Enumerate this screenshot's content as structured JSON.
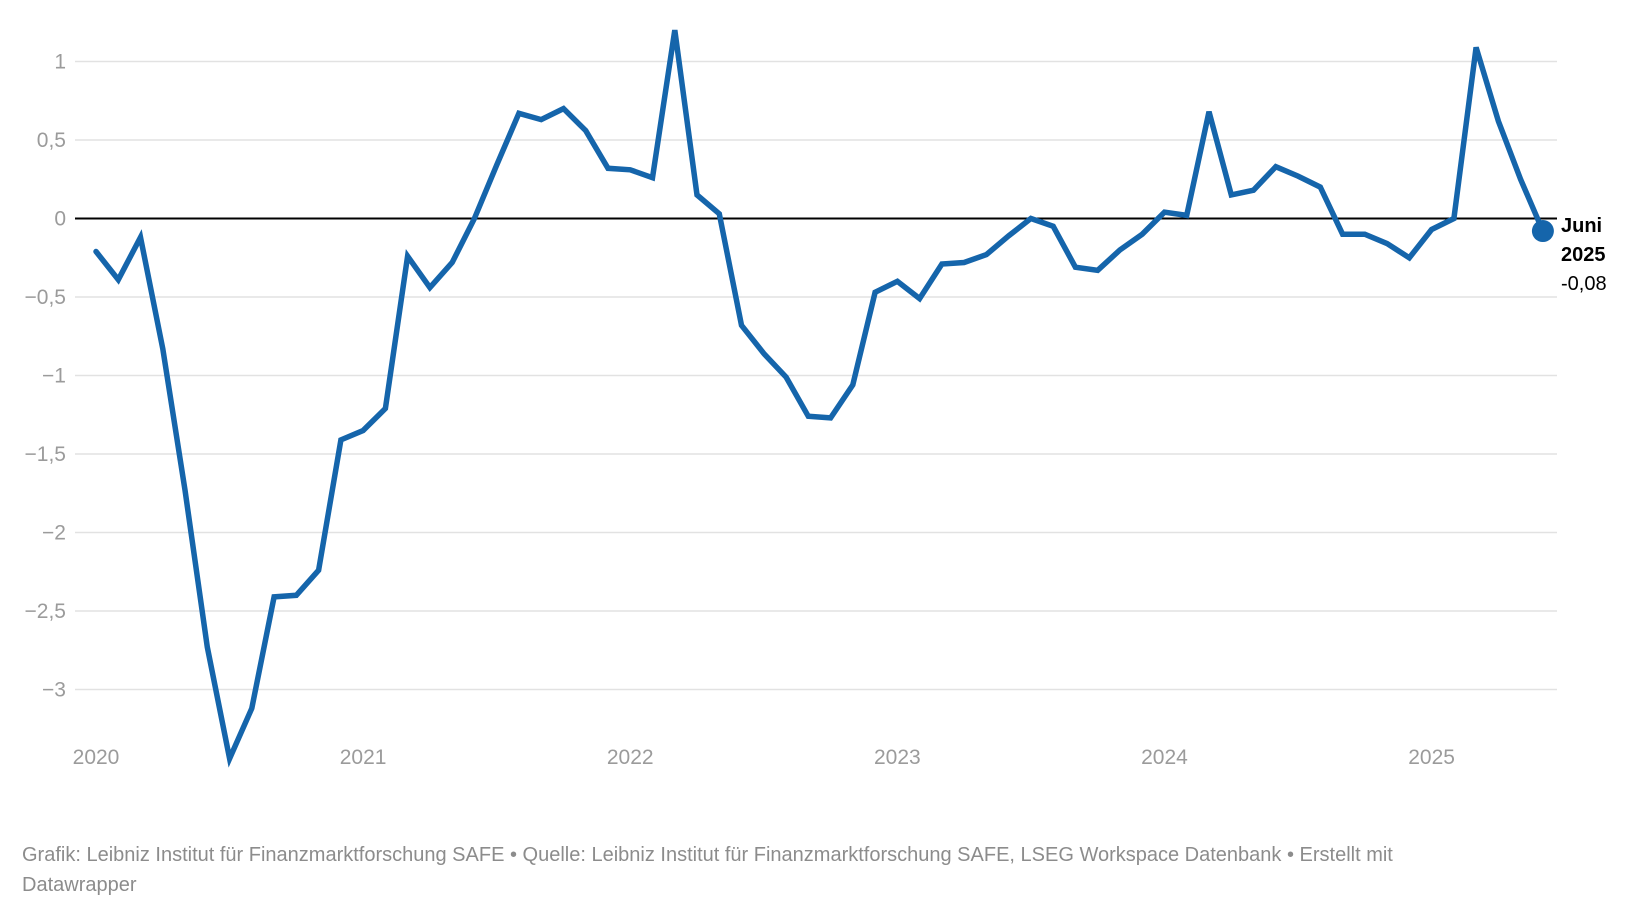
{
  "chart_data": {
    "type": "line",
    "title": "",
    "x_start": "2020-01",
    "x_end": "2025-06",
    "x_interval": "monthly",
    "values": [
      -0.21,
      -0.39,
      -0.12,
      -0.83,
      -1.73,
      -2.73,
      -3.44,
      -3.12,
      -2.41,
      -2.4,
      -2.24,
      -1.41,
      -1.35,
      -1.21,
      -0.24,
      -0.44,
      -0.28,
      0.0,
      0.34,
      0.67,
      0.63,
      0.7,
      0.56,
      0.32,
      0.31,
      0.26,
      1.2,
      0.15,
      0.03,
      -0.68,
      -0.86,
      -1.01,
      -1.26,
      -1.27,
      -1.06,
      -0.47,
      -0.4,
      -0.51,
      -0.29,
      -0.28,
      -0.23,
      -0.11,
      0.0,
      -0.05,
      -0.31,
      -0.33,
      -0.2,
      -0.1,
      0.04,
      0.02,
      0.68,
      0.15,
      0.18,
      0.33,
      0.27,
      0.2,
      -0.1,
      -0.1,
      -0.16,
      -0.25,
      -0.07,
      0.0,
      1.09,
      0.62,
      0.25,
      -0.08
    ],
    "x_tick_labels": [
      "2020",
      "2021",
      "2022",
      "2023",
      "2024",
      "2025"
    ],
    "x_tick_month_index": [
      0,
      12,
      24,
      36,
      48,
      60
    ],
    "y_tick_labels": [
      "1",
      "0,5",
      "0",
      "−0,5",
      "−1",
      "−1,5",
      "−2",
      "−2,5",
      "−3"
    ],
    "y_tick_values": [
      1,
      0.5,
      0,
      -0.5,
      -1,
      -1.5,
      -2,
      -2.5,
      -3
    ],
    "ylim": [
      -3.6,
      1.4
    ],
    "grid": "horizontal",
    "zero_line": true,
    "end_dot": true,
    "last_point_label": "Juni 2025 -0,08"
  },
  "annotation": {
    "line1": "Juni",
    "line2": "2025",
    "value": "-0,08"
  },
  "footer": {
    "text": "Grafik: Leibniz Institut für Finanzmarktforschung SAFE • Quelle: Leibniz Institut für Finanzmarktforschung SAFE, LSEG Workspace Datenbank • Erstellt mit Datawrapper"
  },
  "colors": {
    "line": "#1565ab",
    "grid": "#e2e2e2",
    "zero_line": "#000000",
    "tick_text": "#9b9b9b",
    "footer_text": "#8c8c8c",
    "annotation_text": "#000000"
  }
}
